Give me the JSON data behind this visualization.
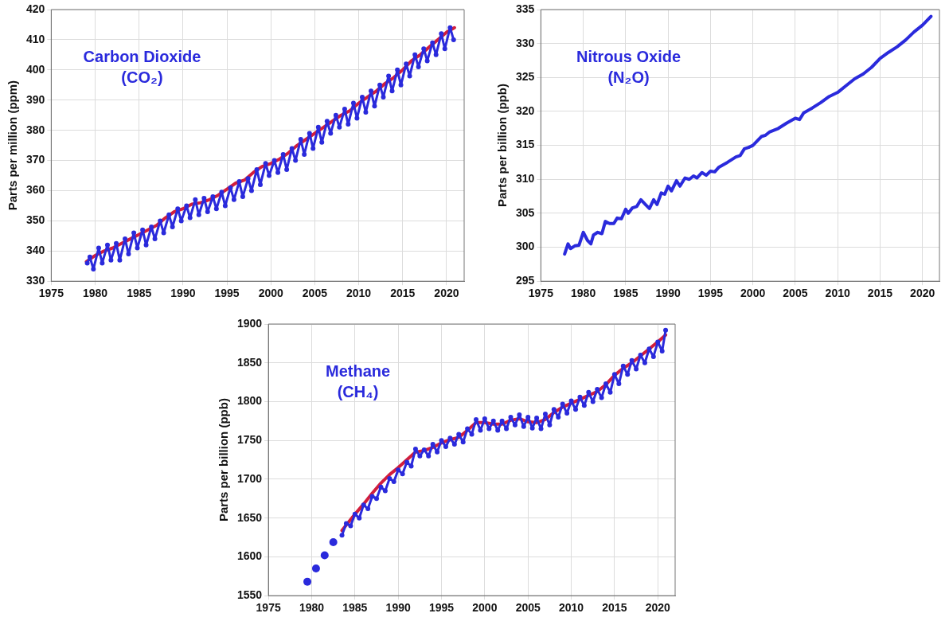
{
  "chart_data": [
    {
      "type": "line",
      "ylabel": "Parts per million (ppm)",
      "annotations": [
        "Carbon Dioxide",
        "(CO₂)"
      ],
      "xlim": [
        1975,
        2022
      ],
      "xticks": [
        1975,
        1980,
        1985,
        1990,
        1995,
        2000,
        2005,
        2010,
        2015,
        2020
      ],
      "ylim": [
        330,
        420
      ],
      "yticks": [
        330,
        340,
        350,
        360,
        370,
        380,
        390,
        400,
        410,
        420
      ],
      "grid": true,
      "series": [
        {
          "color": "#2a2adc",
          "marker": "circle",
          "x": [
            1979.1,
            1979.4,
            1979.8,
            1980.4,
            1980.8,
            1981.4,
            1981.8,
            1982.4,
            1982.8,
            1983.4,
            1983.8,
            1984.4,
            1984.8,
            1985.4,
            1985.8,
            1986.4,
            1986.8,
            1987.4,
            1987.8,
            1988.4,
            1988.8,
            1989.4,
            1989.8,
            1990.4,
            1990.8,
            1991.4,
            1991.8,
            1992.4,
            1992.8,
            1993.4,
            1993.8,
            1994.4,
            1994.8,
            1995.4,
            1995.8,
            1996.4,
            1996.8,
            1997.4,
            1997.8,
            1998.4,
            1998.8,
            1999.4,
            1999.8,
            2000.4,
            2000.8,
            2001.4,
            2001.8,
            2002.4,
            2002.8,
            2003.4,
            2003.8,
            2004.4,
            2004.8,
            2005.4,
            2005.8,
            2006.4,
            2006.8,
            2007.4,
            2007.8,
            2008.4,
            2008.8,
            2009.4,
            2009.8,
            2010.4,
            2010.8,
            2011.4,
            2011.8,
            2012.4,
            2012.8,
            2013.4,
            2013.8,
            2014.4,
            2014.8,
            2015.4,
            2015.8,
            2016.4,
            2016.8,
            2017.4,
            2017.8,
            2018.4,
            2018.8,
            2019.4,
            2019.8,
            2020.4,
            2020.8
          ],
          "values": [
            336,
            338,
            334,
            341,
            336,
            342,
            337,
            342.5,
            337,
            344,
            339,
            346,
            341,
            347,
            342,
            348,
            344,
            350,
            346,
            352,
            348,
            354,
            350,
            355,
            351,
            357,
            352,
            357.5,
            353,
            358,
            354,
            359.5,
            355,
            361,
            357,
            363,
            358,
            364,
            360,
            367,
            362,
            369,
            365,
            370,
            366,
            372,
            367,
            374,
            370,
            377,
            372,
            379,
            374,
            381,
            376,
            383,
            379,
            385,
            381,
            387,
            382,
            389,
            384,
            391,
            386,
            393,
            388,
            395,
            391,
            398,
            393,
            400,
            395,
            402,
            398,
            405,
            401,
            407,
            403,
            409,
            405,
            412,
            407,
            414,
            410
          ]
        },
        {
          "type": "line",
          "color": "#d21e3c",
          "marker": "none",
          "x": [
            1979,
            1980,
            1981,
            1982,
            1983,
            1984,
            1985,
            1986,
            1987,
            1988,
            1989,
            1990,
            1991,
            1992,
            1993,
            1994,
            1995,
            1996,
            1997,
            1998,
            1999,
            2000,
            2001,
            2002,
            2003,
            2004,
            2005,
            2006,
            2007,
            2008,
            2009,
            2010,
            2011,
            2012,
            2013,
            2014,
            2015,
            2016,
            2017,
            2018,
            2019,
            2020,
            2020.9
          ],
          "values": [
            336.5,
            338.5,
            340,
            341,
            342.5,
            344,
            345.5,
            347,
            348.5,
            351,
            353,
            354,
            355.5,
            356,
            357,
            358.5,
            360.5,
            362.5,
            363.5,
            366,
            368,
            369,
            370.5,
            372.5,
            375,
            377,
            379,
            381,
            383,
            385,
            386.5,
            389,
            391,
            393,
            395.5,
            397.5,
            400,
            403,
            405,
            407.5,
            410,
            412.5,
            414
          ]
        }
      ]
    },
    {
      "type": "line",
      "ylabel": "Parts per billion (ppb)",
      "annotations": [
        "Nitrous Oxide",
        "(N₂O)"
      ],
      "xlim": [
        1975,
        2022
      ],
      "xticks": [
        1975,
        1980,
        1985,
        1990,
        1995,
        2000,
        2005,
        2010,
        2015,
        2020
      ],
      "ylim": [
        295,
        335
      ],
      "yticks": [
        295,
        300,
        305,
        310,
        315,
        320,
        325,
        330,
        335
      ],
      "grid": true,
      "series": [
        {
          "color": "#2a2adc",
          "marker": "none",
          "x": [
            1977.8,
            1978.2,
            1978.5,
            1979,
            1979.5,
            1980,
            1980.5,
            1980.9,
            1981.2,
            1981.7,
            1982.2,
            1982.6,
            1983.1,
            1983.6,
            1984,
            1984.5,
            1985,
            1985.3,
            1985.8,
            1986.3,
            1986.8,
            1987.4,
            1987.8,
            1988.3,
            1988.7,
            1989.2,
            1989.6,
            1990,
            1990.4,
            1991,
            1991.4,
            1992,
            1992.5,
            1993,
            1993.4,
            1994,
            1994.5,
            1995,
            1995.5,
            1996,
            1997,
            1998,
            1998.5,
            1999,
            1999.5,
            2000,
            2001,
            2001.5,
            2002,
            2003,
            2004,
            2005,
            2005.5,
            2006,
            2007,
            2008,
            2009,
            2010,
            2011,
            2012,
            2013,
            2014,
            2015,
            2016,
            2017,
            2018,
            2019,
            2020,
            2021
          ],
          "values": [
            299,
            300.5,
            299.8,
            300.2,
            300.3,
            302.2,
            301,
            300.5,
            301.8,
            302.2,
            302,
            303.8,
            303.5,
            303.5,
            304.3,
            304.2,
            305.6,
            305,
            305.8,
            306,
            307,
            306.2,
            305.7,
            307,
            306.3,
            308,
            307.8,
            309,
            308.3,
            309.8,
            309,
            310.2,
            310,
            310.5,
            310.2,
            311,
            310.6,
            311.2,
            311.1,
            311.8,
            312.5,
            313.3,
            313.5,
            314.5,
            314.7,
            315,
            316.3,
            316.5,
            317,
            317.5,
            318.3,
            319,
            318.8,
            319.8,
            320.5,
            321.3,
            322.2,
            322.8,
            323.8,
            324.8,
            325.5,
            326.5,
            327.8,
            328.7,
            329.5,
            330.5,
            331.7,
            332.7,
            334
          ]
        }
      ]
    },
    {
      "type": "line",
      "ylabel": "Parts per billion (ppb)",
      "annotations": [
        "Methane",
        "(CH₄)"
      ],
      "xlim": [
        1975,
        2022
      ],
      "xticks": [
        1975,
        1980,
        1985,
        1990,
        1995,
        2000,
        2005,
        2010,
        2015,
        2020
      ],
      "ylim": [
        1550,
        1900
      ],
      "yticks": [
        1550,
        1600,
        1650,
        1700,
        1750,
        1800,
        1850,
        1900
      ],
      "grid": true,
      "series": [
        {
          "type": "scatter",
          "color": "#2a2adc",
          "marker": "circle",
          "x": [
            1979.5,
            1980.5,
            1981.5,
            1982.5
          ],
          "values": [
            1568,
            1585,
            1602,
            1619
          ]
        },
        {
          "color": "#2a2adc",
          "marker": "circle",
          "x": [
            1983.5,
            1984,
            1984.5,
            1985,
            1985.5,
            1986,
            1986.5,
            1987,
            1987.5,
            1988,
            1988.5,
            1989,
            1989.5,
            1990,
            1990.5,
            1991,
            1991.5,
            1992,
            1992.5,
            1993,
            1993.5,
            1994,
            1994.5,
            1995,
            1995.5,
            1996,
            1996.5,
            1997,
            1997.5,
            1998,
            1998.5,
            1999,
            1999.5,
            2000,
            2000.5,
            2001,
            2001.5,
            2002,
            2002.5,
            2003,
            2003.5,
            2004,
            2004.5,
            2005,
            2005.5,
            2006,
            2006.5,
            2007,
            2007.5,
            2008,
            2008.5,
            2009,
            2009.5,
            2010,
            2010.5,
            2011,
            2011.5,
            2012,
            2012.5,
            2013,
            2013.5,
            2014,
            2014.5,
            2015,
            2015.5,
            2016,
            2016.5,
            2017,
            2017.5,
            2018,
            2018.5,
            2019,
            2019.5,
            2020,
            2020.5,
            2020.9
          ],
          "values": [
            1628,
            1643,
            1640,
            1655,
            1650,
            1667,
            1662,
            1678,
            1675,
            1690,
            1685,
            1701,
            1697,
            1712,
            1707,
            1722,
            1717,
            1739,
            1730,
            1738,
            1730,
            1745,
            1735,
            1750,
            1742,
            1753,
            1745,
            1758,
            1748,
            1765,
            1758,
            1777,
            1763,
            1778,
            1765,
            1775,
            1763,
            1775,
            1765,
            1780,
            1770,
            1783,
            1768,
            1780,
            1766,
            1779,
            1765,
            1784,
            1770,
            1790,
            1780,
            1797,
            1785,
            1801,
            1790,
            1806,
            1795,
            1812,
            1800,
            1816,
            1805,
            1823,
            1812,
            1835,
            1823,
            1846,
            1835,
            1853,
            1842,
            1860,
            1850,
            1868,
            1858,
            1877,
            1865,
            1892
          ]
        },
        {
          "type": "line",
          "color": "#d21e3c",
          "marker": "none",
          "x": [
            1983.5,
            1985,
            1986,
            1987,
            1988,
            1989,
            1990,
            1991,
            1992,
            1993,
            1994,
            1995,
            1996,
            1997,
            1998,
            1999,
            2000,
            2001,
            2002,
            2003,
            2004,
            2005,
            2006,
            2007,
            2008,
            2009,
            2010,
            2011,
            2012,
            2013,
            2014,
            2015,
            2016,
            2017,
            2018,
            2019,
            2020,
            2020.9
          ],
          "values": [
            1634,
            1655,
            1668,
            1682,
            1695,
            1706,
            1715,
            1725,
            1735,
            1737,
            1741,
            1747,
            1751,
            1754,
            1763,
            1773,
            1773,
            1771,
            1771,
            1776,
            1778,
            1774,
            1773,
            1777,
            1786,
            1793,
            1798,
            1803,
            1808,
            1813,
            1822,
            1834,
            1843,
            1850,
            1859,
            1868,
            1877,
            1886
          ]
        }
      ]
    }
  ]
}
